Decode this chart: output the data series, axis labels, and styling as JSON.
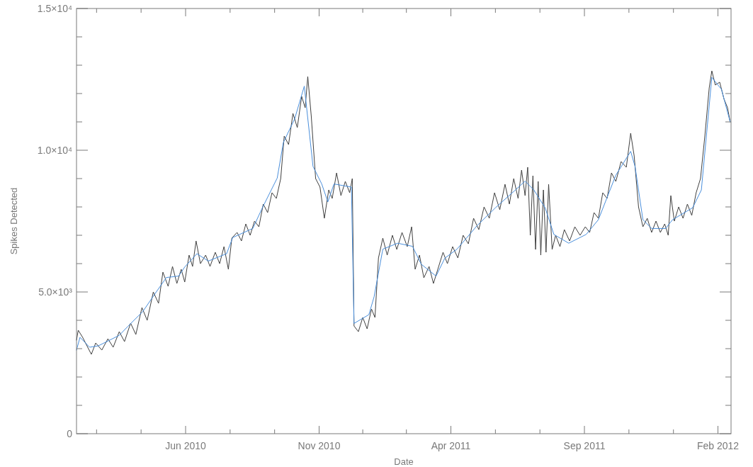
{
  "chart_data": {
    "type": "line",
    "xlabel": "Date",
    "ylabel": "Spikes Detected",
    "xlim": [
      "2010-01-27",
      "2012-02-16"
    ],
    "xticks": [
      {
        "value": "2010-02-19",
        "label": null
      },
      {
        "value": "2010-04-11",
        "label": null
      },
      {
        "value": "2010-06-01",
        "label": "Jun 2010"
      },
      {
        "value": "2010-07-22",
        "label": null
      },
      {
        "value": "2010-09-11",
        "label": null
      },
      {
        "value": "2010-11-01",
        "label": "Nov 2010"
      },
      {
        "value": "2010-12-21",
        "label": null
      },
      {
        "value": "2011-02-09",
        "label": null
      },
      {
        "value": "2011-04-01",
        "label": "Apr 2011"
      },
      {
        "value": "2011-05-22",
        "label": null
      },
      {
        "value": "2011-07-12",
        "label": null
      },
      {
        "value": "2011-09-01",
        "label": "Sep 2011"
      },
      {
        "value": "2011-10-22",
        "label": null
      },
      {
        "value": "2011-12-12",
        "label": null
      },
      {
        "value": "2012-02-01",
        "label": "Feb 2012"
      }
    ],
    "ylim": [
      0,
      15000
    ],
    "yticks": [
      0,
      {
        "value": 1000,
        "label": null
      },
      {
        "value": 2000,
        "label": null
      },
      {
        "value": 3000,
        "label": null
      },
      {
        "value": 4000,
        "label": null
      },
      {
        "value": 5000,
        "label": "5.0×10³"
      },
      {
        "value": 6000,
        "label": null
      },
      {
        "value": 7000,
        "label": null
      },
      {
        "value": 8000,
        "label": null
      },
      {
        "value": 9000,
        "label": null
      },
      {
        "value": 10000,
        "label": "1.0×10⁴"
      },
      {
        "value": 11000,
        "label": null
      },
      {
        "value": 12000,
        "label": null
      },
      {
        "value": 13000,
        "label": null
      },
      {
        "value": 14000,
        "label": null
      },
      {
        "value": 15000,
        "label": "1.5×10⁴"
      }
    ],
    "grid": false,
    "marker": "none",
    "line_style": "solid",
    "series": [
      {
        "color": "#404040",
        "x": [
          "2010-01-27",
          "2010-01-29",
          "2010-02-03",
          "2010-02-08",
          "2010-02-13",
          "2010-02-18",
          "2010-02-25",
          "2010-03-04",
          "2010-03-10",
          "2010-03-17",
          "2010-03-23",
          "2010-03-30",
          "2010-04-05",
          "2010-04-12",
          "2010-04-18",
          "2010-04-25",
          "2010-05-01",
          "2010-05-06",
          "2010-05-12",
          "2010-05-17",
          "2010-05-22",
          "2010-05-27",
          "2010-05-31",
          "2010-06-05",
          "2010-06-09",
          "2010-06-13",
          "2010-06-18",
          "2010-06-24",
          "2010-06-29",
          "2010-07-05",
          "2010-07-10",
          "2010-07-15",
          "2010-07-20",
          "2010-07-24",
          "2010-07-30",
          "2010-08-04",
          "2010-08-09",
          "2010-08-14",
          "2010-08-19",
          "2010-08-24",
          "2010-08-29",
          "2010-09-03",
          "2010-09-08",
          "2010-09-13",
          "2010-09-18",
          "2010-09-22",
          "2010-09-27",
          "2010-10-02",
          "2010-10-07",
          "2010-10-12",
          "2010-10-16",
          "2010-10-19",
          "2010-10-23",
          "2010-10-28",
          "2010-11-02",
          "2010-11-07",
          "2010-11-12",
          "2010-11-16",
          "2010-11-21",
          "2010-11-26",
          "2010-12-01",
          "2010-12-06",
          "2010-12-09",
          "2010-12-11",
          "2010-12-16",
          "2010-12-21",
          "2010-12-26",
          "2010-12-31",
          "2011-01-04",
          "2011-01-08",
          "2011-01-13",
          "2011-01-18",
          "2011-01-24",
          "2011-01-29",
          "2011-02-04",
          "2011-02-10",
          "2011-02-15",
          "2011-02-19",
          "2011-02-24",
          "2011-03-01",
          "2011-03-07",
          "2011-03-12",
          "2011-03-17",
          "2011-03-23",
          "2011-03-28",
          "2011-04-03",
          "2011-04-09",
          "2011-04-15",
          "2011-04-21",
          "2011-04-27",
          "2011-05-03",
          "2011-05-09",
          "2011-05-15",
          "2011-05-21",
          "2011-05-27",
          "2011-06-02",
          "2011-06-07",
          "2011-06-12",
          "2011-06-17",
          "2011-06-21",
          "2011-06-25",
          "2011-06-28",
          "2011-07-01",
          "2011-07-04",
          "2011-07-07",
          "2011-07-10",
          "2011-07-13",
          "2011-07-16",
          "2011-07-19",
          "2011-07-22",
          "2011-07-26",
          "2011-07-30",
          "2011-08-04",
          "2011-08-09",
          "2011-08-15",
          "2011-08-21",
          "2011-08-27",
          "2011-09-02",
          "2011-09-07",
          "2011-09-12",
          "2011-09-17",
          "2011-09-22",
          "2011-09-27",
          "2011-10-02",
          "2011-10-07",
          "2011-10-13",
          "2011-10-19",
          "2011-10-24",
          "2011-10-28",
          "2011-11-02",
          "2011-11-07",
          "2011-11-12",
          "2011-11-17",
          "2011-11-22",
          "2011-11-27",
          "2011-12-02",
          "2011-12-06",
          "2011-12-09",
          "2011-12-13",
          "2011-12-18",
          "2011-12-23",
          "2011-12-28",
          "2012-01-02",
          "2012-01-07",
          "2012-01-12",
          "2012-01-17",
          "2012-01-22",
          "2012-01-25",
          "2012-01-29",
          "2012-02-03",
          "2012-02-08",
          "2012-02-12",
          "2012-02-15"
        ],
        "values": [
          3300,
          3650,
          3400,
          3100,
          2800,
          3200,
          2950,
          3350,
          3050,
          3600,
          3250,
          3900,
          3500,
          4450,
          4000,
          5000,
          4600,
          5700,
          5200,
          5900,
          5300,
          5800,
          5350,
          6300,
          5900,
          6800,
          6000,
          6300,
          5900,
          6400,
          6000,
          6600,
          5800,
          6900,
          7100,
          6800,
          7400,
          7000,
          7500,
          7300,
          8100,
          7800,
          8500,
          8300,
          9000,
          10500,
          10200,
          11300,
          10800,
          11900,
          11500,
          12600,
          11200,
          9000,
          8700,
          7600,
          8600,
          8300,
          9200,
          8400,
          8900,
          8500,
          9000,
          3800,
          3600,
          4100,
          3700,
          4400,
          4100,
          6200,
          6900,
          6300,
          7000,
          6500,
          7100,
          6600,
          7300,
          5800,
          6300,
          5500,
          5900,
          5300,
          5800,
          6400,
          6000,
          6600,
          6200,
          7000,
          6700,
          7600,
          7200,
          8000,
          7600,
          8500,
          7900,
          8800,
          8100,
          9000,
          8300,
          9300,
          8400,
          9400,
          7000,
          9100,
          6500,
          8900,
          6300,
          8600,
          6400,
          8800,
          6500,
          7000,
          6600,
          7200,
          6800,
          7300,
          7000,
          7300,
          7100,
          7800,
          7600,
          8500,
          8300,
          9200,
          8900,
          9600,
          9400,
          10600,
          9800,
          8000,
          7300,
          7600,
          7100,
          7500,
          7100,
          7400,
          7000,
          8400,
          7500,
          8000,
          7600,
          8100,
          7700,
          8500,
          9000,
          10500,
          12200,
          12800,
          12300,
          12400,
          11800,
          11500,
          11000
        ]
      },
      {
        "color": "#4a8fdc",
        "x": [
          "2010-01-27",
          "2010-01-31",
          "2010-02-11",
          "2010-02-21",
          "2010-03-17",
          "2010-03-27",
          "2010-04-13",
          "2010-04-27",
          "2010-05-10",
          "2010-05-24",
          "2010-05-31",
          "2010-06-14",
          "2010-06-27",
          "2010-07-18",
          "2010-07-25",
          "2010-08-17",
          "2010-08-28",
          "2010-09-14",
          "2010-09-21",
          "2010-10-04",
          "2010-10-15",
          "2010-10-25",
          "2010-11-04",
          "2010-11-11",
          "2010-11-18",
          "2010-12-08",
          "2010-12-11",
          "2010-12-28",
          "2011-01-03",
          "2011-01-13",
          "2011-01-30",
          "2011-02-16",
          "2011-02-26",
          "2011-03-15",
          "2011-03-25",
          "2011-04-08",
          "2011-05-01",
          "2011-05-22",
          "2011-06-14",
          "2011-06-25",
          "2011-07-05",
          "2011-07-18",
          "2011-07-28",
          "2011-08-14",
          "2011-09-03",
          "2011-09-17",
          "2011-10-07",
          "2011-10-24",
          "2011-10-29",
          "2011-11-07",
          "2011-11-17",
          "2011-12-03",
          "2011-12-11",
          "2012-01-03",
          "2012-01-13",
          "2012-01-25",
          "2012-02-05",
          "2012-02-15"
        ],
        "values": [
          2950,
          3400,
          3050,
          3100,
          3470,
          3790,
          4310,
          4940,
          5510,
          5560,
          5880,
          6350,
          6090,
          6350,
          6920,
          7240,
          7970,
          9020,
          10270,
          11110,
          12260,
          9430,
          8810,
          8180,
          8810,
          8700,
          3890,
          4200,
          4830,
          6510,
          6720,
          6610,
          5980,
          5560,
          6190,
          6510,
          7340,
          7970,
          8600,
          8910,
          8600,
          7970,
          7030,
          6720,
          7030,
          7550,
          9120,
          9960,
          9430,
          7550,
          7240,
          7240,
          7550,
          7970,
          8600,
          12570,
          12150,
          11000
        ]
      }
    ]
  }
}
